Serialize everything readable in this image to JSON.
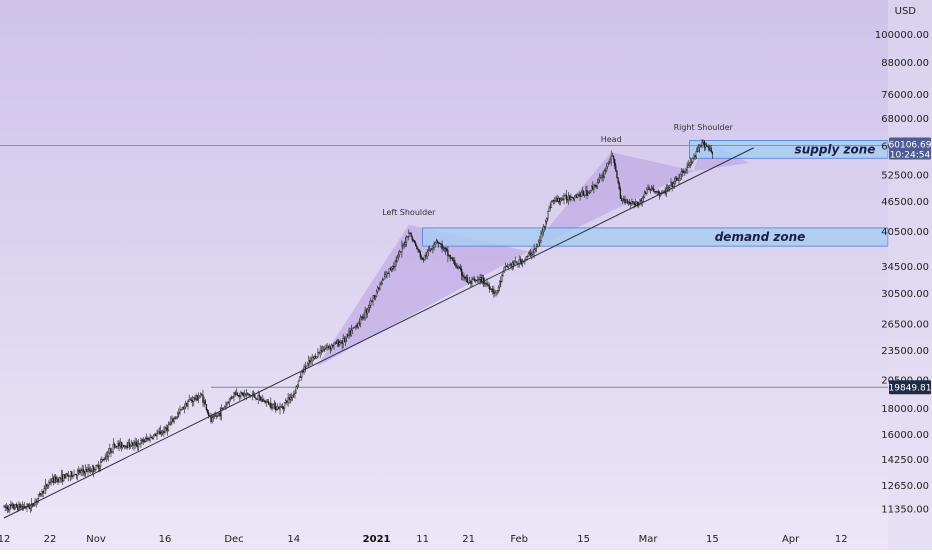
{
  "chart_data": {
    "type": "candlestick",
    "title": "",
    "xlabel": "",
    "ylabel": "",
    "currency_label": "USD",
    "y_scale": "log",
    "ylim": [
      10800,
      115000
    ],
    "xlim": [
      "2020-10-12",
      "2021-04-15"
    ],
    "grid": false,
    "y_ticks": [
      11350,
      12650,
      14250,
      16000,
      18000,
      20500,
      23500,
      26500,
      30500,
      34500,
      40500,
      46500,
      52500,
      60000,
      68000,
      76000,
      88000,
      100000
    ],
    "y_tick_labels": [
      "11350.00",
      "12650.00",
      "14250.00",
      "16000.00",
      "18000.00",
      "20500.00",
      "23500.00",
      "26500.00",
      "30500.00",
      "34500.00",
      "40500.00",
      "46500.00",
      "52500.00",
      "60000.00",
      "68000.00",
      "76000.00",
      "88000.00",
      "100000.00"
    ],
    "x_ticks": [
      {
        "label": "12",
        "date": "2020-10-12",
        "bold": false
      },
      {
        "label": "22",
        "date": "2020-10-22",
        "bold": false
      },
      {
        "label": "Nov",
        "date": "2020-11-01",
        "bold": false
      },
      {
        "label": "16",
        "date": "2020-11-16",
        "bold": false
      },
      {
        "label": "Dec",
        "date": "2020-12-01",
        "bold": false
      },
      {
        "label": "14",
        "date": "2020-12-14",
        "bold": false
      },
      {
        "label": "2021",
        "date": "2021-01-01",
        "bold": true
      },
      {
        "label": "11",
        "date": "2021-01-11",
        "bold": false
      },
      {
        "label": "21",
        "date": "2021-01-21",
        "bold": false
      },
      {
        "label": "Feb",
        "date": "2021-02-01",
        "bold": false
      },
      {
        "label": "15",
        "date": "2021-02-15",
        "bold": false
      },
      {
        "label": "Mar",
        "date": "2021-03-01",
        "bold": false
      },
      {
        "label": "15",
        "date": "2021-03-15",
        "bold": false
      },
      {
        "label": "Apr",
        "date": "2021-04-01",
        "bold": false
      },
      {
        "label": "12",
        "date": "2021-04-12",
        "bold": false
      }
    ],
    "price_path": [
      [
        "2020-10-12",
        11450
      ],
      [
        "2020-10-18",
        11500
      ],
      [
        "2020-10-22",
        12900
      ],
      [
        "2020-10-28",
        13400
      ],
      [
        "2020-11-01",
        13700
      ],
      [
        "2020-11-05",
        15200
      ],
      [
        "2020-11-10",
        15300
      ],
      [
        "2020-11-16",
        16300
      ],
      [
        "2020-11-21",
        18600
      ],
      [
        "2020-11-24",
        19100
      ],
      [
        "2020-11-26",
        17000
      ],
      [
        "2020-11-28",
        17700
      ],
      [
        "2020-12-01",
        19300
      ],
      [
        "2020-12-05",
        19100
      ],
      [
        "2020-12-11",
        18000
      ],
      [
        "2020-12-14",
        19300
      ],
      [
        "2020-12-16",
        21500
      ],
      [
        "2020-12-20",
        23600
      ],
      [
        "2020-12-25",
        24600
      ],
      [
        "2020-12-29",
        27400
      ],
      [
        "2021-01-02",
        32000
      ],
      [
        "2021-01-06",
        36500
      ],
      [
        "2021-01-08",
        40500
      ],
      [
        "2021-01-11",
        35500
      ],
      [
        "2021-01-14",
        39000
      ],
      [
        "2021-01-17",
        36000
      ],
      [
        "2021-01-21",
        32000
      ],
      [
        "2021-01-24",
        32500
      ],
      [
        "2021-01-27",
        30500
      ],
      [
        "2021-01-29",
        34500
      ],
      [
        "2021-02-02",
        35500
      ],
      [
        "2021-02-05",
        37800
      ],
      [
        "2021-02-08",
        46500
      ],
      [
        "2021-02-12",
        47500
      ],
      [
        "2021-02-16",
        48500
      ],
      [
        "2021-02-19",
        52000
      ],
      [
        "2021-02-21",
        57500
      ],
      [
        "2021-02-22",
        54000
      ],
      [
        "2021-02-23",
        47000
      ],
      [
        "2021-02-27",
        46000
      ],
      [
        "2021-03-01",
        49500
      ],
      [
        "2021-03-04",
        48000
      ],
      [
        "2021-03-07",
        51000
      ],
      [
        "2021-03-10",
        55000
      ],
      [
        "2021-03-13",
        61000
      ],
      [
        "2021-03-15",
        58500
      ]
    ],
    "annotations": {
      "left_shoulder": {
        "label": "Left Shoulder",
        "date": "2021-01-08",
        "price": 41800
      },
      "head": {
        "label": "Head",
        "date": "2021-02-21",
        "price": 58300
      },
      "right_shoulder": {
        "label": "Right Shoulder",
        "date": "2021-03-13",
        "price": 61700
      },
      "supply_zone": {
        "label": "supply zone",
        "date_start": "2021-03-10",
        "price_low": 56700,
        "price_high": 61500
      },
      "demand_zone": {
        "label": "demand zone",
        "date_start": "2021-01-11",
        "price_low": 37900,
        "price_high": 41200
      },
      "trendline": {
        "start": [
          "2020-10-12",
          10900
        ],
        "end": [
          "2021-03-24",
          59500
        ]
      },
      "resistance_line": {
        "price": 60106.69
      },
      "support_line": {
        "price": 19849.81,
        "date_start": "2020-11-26"
      },
      "triangle_left": [
        [
          "2020-12-19",
          21800
        ],
        [
          "2021-01-08",
          41800
        ],
        [
          "2021-02-03",
          37000
        ]
      ],
      "triangle_head": [
        [
          "2021-02-03",
          37000
        ],
        [
          "2021-02-21",
          58300
        ],
        [
          "2021-03-11",
          53500
        ]
      ],
      "triangle_right": [
        [
          "2021-03-11",
          53500
        ],
        [
          "2021-03-13",
          61700
        ],
        [
          "2021-03-23",
          55500
        ]
      ]
    },
    "last_price_label": "60106.69",
    "countdown_label": "10:24:54",
    "support_price_label": "19849.81",
    "colors": {
      "background_top": "#cfc3ea",
      "background_bottom": "#ece6f7",
      "candle": "#1a1a1a",
      "triangle_fill": "#b79ee0",
      "zone_fill": "#a9cdf2",
      "zone_border": "#4a7fd6",
      "trendline": "#2c2c44",
      "resistance_line": "#8c88c8",
      "support_line": "#5a9a98",
      "price_tag": "#4f5b93",
      "support_tag": "#1f2a44"
    }
  }
}
